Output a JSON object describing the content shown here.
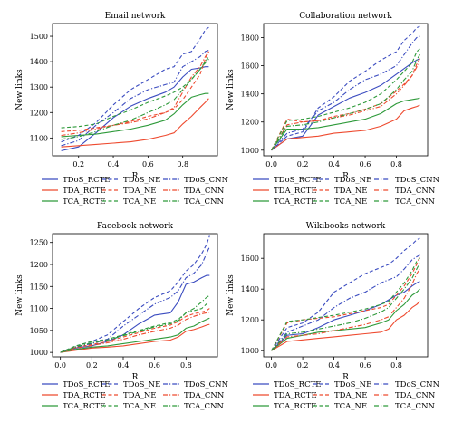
{
  "figure": {
    "background": "#ffffff"
  },
  "styles": {
    "TDoS": "#3b4cc0",
    "TDA": "#ee4a2f",
    "TCA": "#2e9a3a"
  },
  "chart_data": [
    {
      "type": "line",
      "title": "Email network",
      "xlabel": "R",
      "ylabel": "New links",
      "xlim": [
        0.05,
        1.0
      ],
      "ylim": [
        1030,
        1550
      ],
      "xticks": [
        0.2,
        0.4,
        0.6,
        0.8
      ],
      "yticks": [
        1100,
        1200,
        1300,
        1400,
        1500
      ],
      "xtick_labels": [
        "0.2",
        "0.4",
        "0.6",
        "0.8"
      ],
      "ytick_labels": [
        "1100",
        "1200",
        "1300",
        "1400",
        "1500"
      ],
      "grid": false,
      "x": [
        0.1,
        0.2,
        0.3,
        0.4,
        0.5,
        0.6,
        0.7,
        0.75,
        0.8,
        0.85,
        0.9,
        0.93,
        0.95
      ],
      "series": [
        {
          "name": "TDoS_RCTE",
          "color": "#3b4cc0",
          "dash": "solid",
          "values": [
            1050,
            1065,
            1120,
            1180,
            1225,
            1255,
            1280,
            1300,
            1340,
            1370,
            1375,
            1380,
            1380
          ]
        },
        {
          "name": "TDA_RCTE",
          "color": "#ee4a2f",
          "dash": "solid",
          "values": [
            1065,
            1070,
            1075,
            1080,
            1085,
            1095,
            1110,
            1120,
            1155,
            1185,
            1220,
            1240,
            1255
          ]
        },
        {
          "name": "TCA_RCTE",
          "color": "#2e9a3a",
          "dash": "solid",
          "values": [
            1105,
            1110,
            1115,
            1125,
            1135,
            1150,
            1170,
            1195,
            1230,
            1260,
            1270,
            1275,
            1275
          ]
        },
        {
          "name": "TDoS_NE",
          "color": "#3b4cc0",
          "dash": "dashed",
          "values": [
            1085,
            1110,
            1160,
            1230,
            1290,
            1330,
            1370,
            1380,
            1430,
            1440,
            1490,
            1525,
            1535
          ]
        },
        {
          "name": "TDA_NE",
          "color": "#ee4a2f",
          "dash": "dashed",
          "values": [
            1125,
            1130,
            1140,
            1150,
            1165,
            1185,
            1200,
            1215,
            1250,
            1300,
            1350,
            1410,
            1440
          ]
        },
        {
          "name": "TCA_NE",
          "color": "#2e9a3a",
          "dash": "dashed",
          "values": [
            1140,
            1145,
            1155,
            1185,
            1210,
            1240,
            1265,
            1280,
            1300,
            1330,
            1370,
            1400,
            1420
          ]
        },
        {
          "name": "TDoS_CNN",
          "color": "#3b4cc0",
          "dash": "dashdot",
          "values": [
            1070,
            1090,
            1150,
            1200,
            1255,
            1290,
            1310,
            1320,
            1380,
            1400,
            1420,
            1440,
            1445
          ]
        },
        {
          "name": "TDA_CNN",
          "color": "#ee4a2f",
          "dash": "dashdot",
          "values": [
            1110,
            1120,
            1135,
            1150,
            1160,
            1175,
            1200,
            1220,
            1280,
            1340,
            1380,
            1420,
            1440
          ]
        },
        {
          "name": "TCA_CNN",
          "color": "#2e9a3a",
          "dash": "dashdot",
          "values": [
            1095,
            1105,
            1125,
            1150,
            1170,
            1200,
            1230,
            1250,
            1290,
            1330,
            1370,
            1395,
            1410
          ]
        }
      ]
    },
    {
      "type": "line",
      "title": "Collaboration network",
      "xlabel": "R",
      "ylabel": "New links",
      "xlim": [
        -0.05,
        1.0
      ],
      "ylim": [
        960,
        1900
      ],
      "xticks": [
        0.0,
        0.2,
        0.4,
        0.6,
        0.8
      ],
      "yticks": [
        1000,
        1200,
        1400,
        1600,
        1800
      ],
      "xtick_labels": [
        "0.0",
        "0.2",
        "0.4",
        "0.6",
        "0.8"
      ],
      "ytick_labels": [
        "1000",
        "1200",
        "1400",
        "1600",
        "1800"
      ],
      "grid": false,
      "x": [
        0.0,
        0.1,
        0.2,
        0.3,
        0.4,
        0.5,
        0.6,
        0.7,
        0.8,
        0.85,
        0.9,
        0.93,
        0.95
      ],
      "series": [
        {
          "name": "TDoS_RCTE",
          "color": "#3b4cc0",
          "dash": "solid",
          "values": [
            1000,
            1080,
            1100,
            1250,
            1310,
            1370,
            1410,
            1460,
            1540,
            1580,
            1620,
            1640,
            1650
          ]
        },
        {
          "name": "TDA_RCTE",
          "color": "#ee4a2f",
          "dash": "solid",
          "values": [
            1000,
            1080,
            1090,
            1100,
            1120,
            1130,
            1140,
            1170,
            1220,
            1280,
            1300,
            1310,
            1320
          ]
        },
        {
          "name": "TCA_RCTE",
          "color": "#2e9a3a",
          "dash": "solid",
          "values": [
            1000,
            1150,
            1150,
            1160,
            1180,
            1200,
            1220,
            1260,
            1330,
            1350,
            1360,
            1365,
            1370
          ]
        },
        {
          "name": "TDoS_NE",
          "color": "#3b4cc0",
          "dash": "dashed",
          "values": [
            1000,
            1100,
            1130,
            1300,
            1380,
            1490,
            1560,
            1640,
            1700,
            1780,
            1830,
            1870,
            1880
          ]
        },
        {
          "name": "TDA_NE",
          "color": "#ee4a2f",
          "dash": "dashed",
          "values": [
            1000,
            1220,
            1200,
            1210,
            1240,
            1260,
            1290,
            1330,
            1420,
            1470,
            1530,
            1610,
            1650
          ]
        },
        {
          "name": "TCA_NE",
          "color": "#2e9a3a",
          "dash": "dashed",
          "values": [
            1000,
            1210,
            1220,
            1240,
            1270,
            1300,
            1340,
            1400,
            1500,
            1560,
            1620,
            1700,
            1720
          ]
        },
        {
          "name": "TDoS_CNN",
          "color": "#3b4cc0",
          "dash": "dashdot",
          "values": [
            1000,
            1120,
            1150,
            1280,
            1340,
            1430,
            1500,
            1540,
            1600,
            1680,
            1760,
            1800,
            1810
          ]
        },
        {
          "name": "TDA_CNN",
          "color": "#ee4a2f",
          "dash": "dashdot",
          "values": [
            1000,
            1180,
            1200,
            1210,
            1230,
            1250,
            1280,
            1310,
            1400,
            1460,
            1530,
            1590,
            1620
          ]
        },
        {
          "name": "TCA_CNN",
          "color": "#2e9a3a",
          "dash": "dashdot",
          "values": [
            1000,
            1170,
            1180,
            1200,
            1230,
            1260,
            1290,
            1330,
            1430,
            1500,
            1560,
            1640,
            1680
          ]
        }
      ]
    },
    {
      "type": "line",
      "title": "Facebook network",
      "xlabel": "R",
      "ylabel": "New links",
      "xlim": [
        -0.05,
        1.0
      ],
      "ylim": [
        990,
        1270
      ],
      "xticks": [
        0.0,
        0.2,
        0.4,
        0.6,
        0.8
      ],
      "yticks": [
        1000,
        1050,
        1100,
        1150,
        1200,
        1250
      ],
      "xtick_labels": [
        "0.0",
        "0.2",
        "0.4",
        "0.6",
        "0.8"
      ],
      "ytick_labels": [
        "1000",
        "1050",
        "1100",
        "1150",
        "1200",
        "1250"
      ],
      "grid": false,
      "x": [
        0.0,
        0.1,
        0.2,
        0.3,
        0.4,
        0.5,
        0.6,
        0.7,
        0.75,
        0.8,
        0.85,
        0.9,
        0.93,
        0.95
      ],
      "series": [
        {
          "name": "TDoS_RCTE",
          "color": "#3b4cc0",
          "dash": "solid",
          "values": [
            1000,
            1010,
            1015,
            1025,
            1040,
            1065,
            1085,
            1090,
            1115,
            1155,
            1160,
            1170,
            1175,
            1175
          ]
        },
        {
          "name": "TDA_RCTE",
          "color": "#ee4a2f",
          "dash": "solid",
          "values": [
            1000,
            1005,
            1010,
            1012,
            1015,
            1020,
            1025,
            1028,
            1035,
            1048,
            1052,
            1058,
            1062,
            1064
          ]
        },
        {
          "name": "TCA_RCTE",
          "color": "#2e9a3a",
          "dash": "solid",
          "values": [
            1000,
            1007,
            1012,
            1015,
            1020,
            1025,
            1030,
            1035,
            1040,
            1055,
            1060,
            1070,
            1075,
            1078
          ]
        },
        {
          "name": "TDoS_NE",
          "color": "#3b4cc0",
          "dash": "dashed",
          "values": [
            1000,
            1015,
            1025,
            1040,
            1070,
            1100,
            1125,
            1140,
            1160,
            1185,
            1200,
            1225,
            1245,
            1265
          ]
        },
        {
          "name": "TDA_NE",
          "color": "#ee4a2f",
          "dash": "dashed",
          "values": [
            1000,
            1012,
            1018,
            1025,
            1035,
            1045,
            1055,
            1062,
            1070,
            1082,
            1088,
            1092,
            1095,
            1100
          ]
        },
        {
          "name": "TCA_NE",
          "color": "#2e9a3a",
          "dash": "dashed",
          "values": [
            1000,
            1015,
            1025,
            1030,
            1040,
            1050,
            1060,
            1068,
            1075,
            1090,
            1095,
            1100,
            1110,
            1115
          ]
        },
        {
          "name": "TDoS_CNN",
          "color": "#3b4cc0",
          "dash": "dashdot",
          "values": [
            1000,
            1012,
            1020,
            1030,
            1060,
            1085,
            1110,
            1125,
            1140,
            1170,
            1180,
            1200,
            1225,
            1240
          ]
        },
        {
          "name": "TDA_CNN",
          "color": "#ee4a2f",
          "dash": "dashdot",
          "values": [
            1000,
            1010,
            1016,
            1022,
            1030,
            1040,
            1048,
            1055,
            1062,
            1075,
            1082,
            1088,
            1090,
            1092
          ]
        },
        {
          "name": "TCA_CNN",
          "color": "#2e9a3a",
          "dash": "dashdot",
          "values": [
            1000,
            1013,
            1022,
            1028,
            1038,
            1048,
            1058,
            1065,
            1072,
            1090,
            1100,
            1115,
            1125,
            1130
          ]
        }
      ]
    },
    {
      "type": "line",
      "title": "Wikibooks network",
      "xlabel": "R",
      "ylabel": "New links",
      "xlim": [
        -0.05,
        1.0
      ],
      "ylim": [
        960,
        1760
      ],
      "xticks": [
        0.0,
        0.2,
        0.4,
        0.6,
        0.8
      ],
      "yticks": [
        1000,
        1200,
        1400,
        1600
      ],
      "xtick_labels": [
        "0.0",
        "0.2",
        "0.4",
        "0.6",
        "0.8"
      ],
      "ytick_labels": [
        "1000",
        "1200",
        "1400",
        "1600"
      ],
      "grid": false,
      "x": [
        0.0,
        0.1,
        0.2,
        0.3,
        0.4,
        0.5,
        0.6,
        0.7,
        0.75,
        0.8,
        0.85,
        0.9,
        0.93,
        0.95
      ],
      "series": [
        {
          "name": "TDoS_RCTE",
          "color": "#3b4cc0",
          "dash": "solid",
          "values": [
            1000,
            1100,
            1110,
            1150,
            1200,
            1230,
            1260,
            1300,
            1330,
            1360,
            1380,
            1420,
            1440,
            1450
          ]
        },
        {
          "name": "TDA_RCTE",
          "color": "#ee4a2f",
          "dash": "solid",
          "values": [
            1000,
            1060,
            1070,
            1080,
            1090,
            1100,
            1110,
            1120,
            1140,
            1200,
            1230,
            1280,
            1300,
            1320
          ]
        },
        {
          "name": "TCA_RCTE",
          "color": "#2e9a3a",
          "dash": "solid",
          "values": [
            1000,
            1080,
            1100,
            1120,
            1130,
            1140,
            1150,
            1180,
            1200,
            1260,
            1300,
            1360,
            1380,
            1400
          ]
        },
        {
          "name": "TDoS_NE",
          "color": "#3b4cc0",
          "dash": "dashed",
          "values": [
            1000,
            1150,
            1180,
            1250,
            1380,
            1440,
            1500,
            1540,
            1560,
            1600,
            1650,
            1690,
            1720,
            1730
          ]
        },
        {
          "name": "TDA_NE",
          "color": "#ee4a2f",
          "dash": "dashed",
          "values": [
            1000,
            1180,
            1200,
            1210,
            1220,
            1240,
            1260,
            1280,
            1300,
            1360,
            1420,
            1500,
            1560,
            1610
          ]
        },
        {
          "name": "TCA_NE",
          "color": "#2e9a3a",
          "dash": "dashed",
          "values": [
            1000,
            1190,
            1200,
            1215,
            1230,
            1250,
            1270,
            1300,
            1320,
            1380,
            1440,
            1520,
            1580,
            1600
          ]
        },
        {
          "name": "TDoS_CNN",
          "color": "#3b4cc0",
          "dash": "dashdot",
          "values": [
            1000,
            1120,
            1160,
            1200,
            1280,
            1340,
            1380,
            1440,
            1460,
            1480,
            1530,
            1590,
            1610,
            1620
          ]
        },
        {
          "name": "TDA_CNN",
          "color": "#ee4a2f",
          "dash": "dashdot",
          "values": [
            1000,
            1090,
            1100,
            1110,
            1130,
            1150,
            1170,
            1200,
            1220,
            1280,
            1340,
            1430,
            1500,
            1530
          ]
        },
        {
          "name": "TCA_CNN",
          "color": "#2e9a3a",
          "dash": "dashdot",
          "values": [
            1000,
            1110,
            1120,
            1140,
            1160,
            1180,
            1210,
            1250,
            1280,
            1340,
            1400,
            1470,
            1530,
            1570
          ]
        }
      ]
    }
  ]
}
